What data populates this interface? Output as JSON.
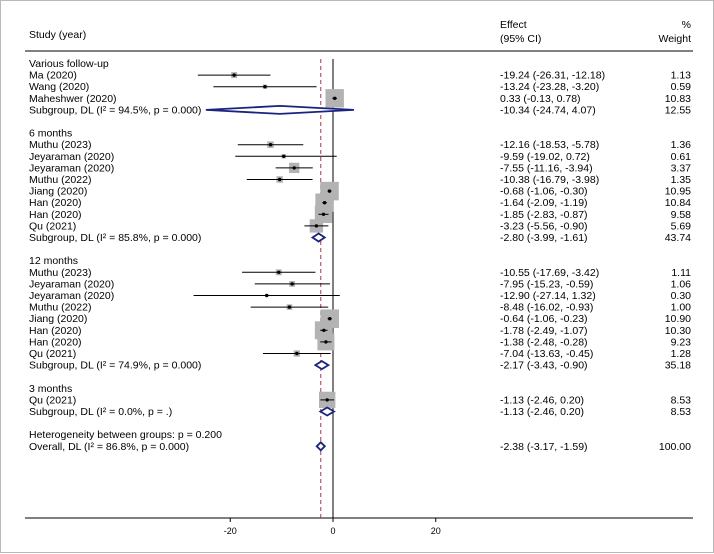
{
  "chart_data": {
    "type": "forest",
    "header": {
      "study_col": "Study (year)",
      "effect_col_line1": "Effect",
      "effect_col_line2": "(95% CI)",
      "weight_col_line1": "%",
      "weight_col_line2": "Weight"
    },
    "xaxis": {
      "ticks": [
        -20,
        0,
        20
      ],
      "range": [
        -29,
        29
      ]
    },
    "null_line": 0,
    "overall_line": -2.38,
    "rows": [
      {
        "kind": "group",
        "label": "Various follow-up"
      },
      {
        "kind": "study",
        "label": "Ma (2020)",
        "est": -19.24,
        "lo": -26.31,
        "hi": -12.18,
        "ci": "-19.24 (-26.31, -12.18)",
        "w": "1.13",
        "wv": 1.13
      },
      {
        "kind": "study",
        "label": "Wang (2020)",
        "est": -13.24,
        "lo": -23.28,
        "hi": -3.2,
        "ci": "-13.24 (-23.28, -3.20)",
        "w": "0.59",
        "wv": 0.59
      },
      {
        "kind": "study",
        "label": "Maheshwer (2020)",
        "est": 0.33,
        "lo": -0.13,
        "hi": 0.78,
        "ci": "0.33 (-0.13, 0.78)",
        "w": "10.83",
        "wv": 10.83
      },
      {
        "kind": "subgroup",
        "label": "Subgroup, DL (I² = 94.5%, p = 0.000)",
        "est": -10.34,
        "lo": -24.74,
        "hi": 4.07,
        "ci": "-10.34 (-24.74, 4.07)",
        "w": "12.55"
      },
      {
        "kind": "gap"
      },
      {
        "kind": "group",
        "label": "6 months"
      },
      {
        "kind": "study",
        "label": "Muthu (2023)",
        "est": -12.16,
        "lo": -18.53,
        "hi": -5.78,
        "ci": "-12.16 (-18.53, -5.78)",
        "w": "1.36",
        "wv": 1.36
      },
      {
        "kind": "study",
        "label": "Jeyaraman (2020)",
        "est": -9.59,
        "lo": -19.02,
        "hi": 0.72,
        "ci": "-9.59 (-19.02, 0.72)",
        "w": "0.61",
        "wv": 0.61
      },
      {
        "kind": "study",
        "label": "Jeyaraman (2020)",
        "est": -7.55,
        "lo": -11.16,
        "hi": -3.94,
        "ci": "-7.55 (-11.16, -3.94)",
        "w": "3.37",
        "wv": 3.37
      },
      {
        "kind": "study",
        "label": "Muthu (2022)",
        "est": -10.38,
        "lo": -16.79,
        "hi": -3.98,
        "ci": "-10.38 (-16.79, -3.98)",
        "w": "1.35",
        "wv": 1.35
      },
      {
        "kind": "study",
        "label": "Jiang (2020)",
        "est": -0.68,
        "lo": -1.06,
        "hi": -0.3,
        "ci": "-0.68 (-1.06, -0.30)",
        "w": "10.95",
        "wv": 10.95
      },
      {
        "kind": "study",
        "label": "Han (2020)",
        "est": -1.64,
        "lo": -2.09,
        "hi": -1.19,
        "ci": "-1.64 (-2.09, -1.19)",
        "w": "10.84",
        "wv": 10.84
      },
      {
        "kind": "study",
        "label": "Han (2020)",
        "est": -1.85,
        "lo": -2.83,
        "hi": -0.87,
        "ci": "-1.85 (-2.83, -0.87)",
        "w": "9.58",
        "wv": 9.58
      },
      {
        "kind": "study",
        "label": "Qu (2021)",
        "est": -3.23,
        "lo": -5.56,
        "hi": -0.9,
        "ci": "-3.23 (-5.56, -0.90)",
        "w": "5.69",
        "wv": 5.69
      },
      {
        "kind": "subgroup",
        "label": "Subgroup, DL (I² = 85.8%, p = 0.000)",
        "est": -2.8,
        "lo": -3.99,
        "hi": -1.61,
        "ci": "-2.80 (-3.99, -1.61)",
        "w": "43.74"
      },
      {
        "kind": "gap"
      },
      {
        "kind": "group",
        "label": "12 months"
      },
      {
        "kind": "study",
        "label": "Muthu (2023)",
        "est": -10.55,
        "lo": -17.69,
        "hi": -3.42,
        "ci": "-10.55 (-17.69, -3.42)",
        "w": "1.11",
        "wv": 1.11
      },
      {
        "kind": "study",
        "label": "Jeyaraman (2020)",
        "est": -7.95,
        "lo": -15.23,
        "hi": -0.59,
        "ci": "-7.95 (-15.23, -0.59)",
        "w": "1.06",
        "wv": 1.06
      },
      {
        "kind": "study",
        "label": "Jeyaraman (2020)",
        "est": -12.9,
        "lo": -27.14,
        "hi": 1.32,
        "ci": "-12.90 (-27.14, 1.32)",
        "w": "0.30",
        "wv": 0.3
      },
      {
        "kind": "study",
        "label": "Muthu (2022)",
        "est": -8.48,
        "lo": -16.02,
        "hi": -0.93,
        "ci": "-8.48 (-16.02, -0.93)",
        "w": "1.00",
        "wv": 1.0
      },
      {
        "kind": "study",
        "label": "Jiang (2020)",
        "est": -0.64,
        "lo": -1.06,
        "hi": -0.23,
        "ci": "-0.64 (-1.06, -0.23)",
        "w": "10.90",
        "wv": 10.9
      },
      {
        "kind": "study",
        "label": "Han (2020)",
        "est": -1.78,
        "lo": -2.49,
        "hi": -1.07,
        "ci": "-1.78 (-2.49, -1.07)",
        "w": "10.30",
        "wv": 10.3
      },
      {
        "kind": "study",
        "label": "Han (2020)",
        "est": -1.38,
        "lo": -2.48,
        "hi": -0.28,
        "ci": "-1.38 (-2.48, -0.28)",
        "w": "9.23",
        "wv": 9.23
      },
      {
        "kind": "study",
        "label": "Qu (2021)",
        "est": -7.04,
        "lo": -13.63,
        "hi": -0.45,
        "ci": "-7.04 (-13.63, -0.45)",
        "w": "1.28",
        "wv": 1.28
      },
      {
        "kind": "subgroup",
        "label": "Subgroup, DL (I² = 74.9%, p = 0.000)",
        "est": -2.17,
        "lo": -3.43,
        "hi": -0.9,
        "ci": "-2.17 (-3.43, -0.90)",
        "w": "35.18"
      },
      {
        "kind": "gap"
      },
      {
        "kind": "group",
        "label": "3 months"
      },
      {
        "kind": "study",
        "label": "Qu (2021)",
        "est": -1.13,
        "lo": -2.46,
        "hi": 0.2,
        "ci": "-1.13 (-2.46, 0.20)",
        "w": "8.53",
        "wv": 8.53
      },
      {
        "kind": "subgroup",
        "label": "Subgroup, DL (I² = 0.0%, p = .)",
        "est": -1.13,
        "lo": -2.46,
        "hi": 0.2,
        "ci": "-1.13 (-2.46, 0.20)",
        "w": "8.53"
      },
      {
        "kind": "gap"
      },
      {
        "kind": "note",
        "label": "Heterogeneity between groups: p = 0.200"
      },
      {
        "kind": "overall",
        "label": "Overall, DL (I² = 86.8%, p = 0.000)",
        "est": -2.38,
        "lo": -3.17,
        "hi": -1.59,
        "ci": "-2.38 (-3.17, -1.59)",
        "w": "100.00"
      }
    ],
    "colors": {
      "square": "#b3b3b3",
      "diamond": "#1a237e",
      "overall_line": "#b03050",
      "line": "#000000"
    }
  }
}
